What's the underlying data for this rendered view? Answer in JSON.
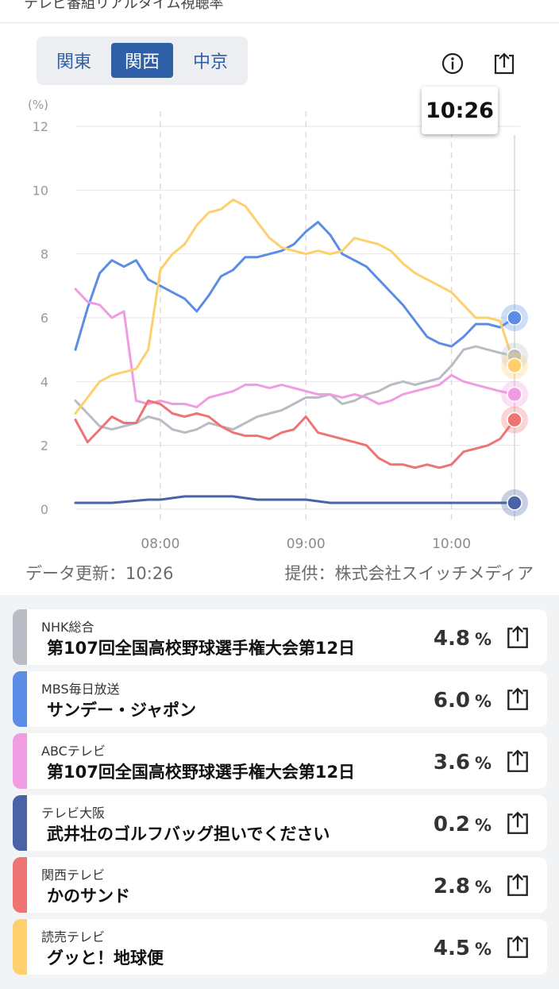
{
  "header": {
    "cut_title": "テレビ番組リアルタイム視聴率"
  },
  "regions": [
    {
      "label": "関東",
      "active": false
    },
    {
      "label": "関西",
      "active": true
    },
    {
      "label": "中京",
      "active": false
    }
  ],
  "icons": {
    "info": "info-icon",
    "share": "share-icon"
  },
  "tooltip": {
    "time": "10:26"
  },
  "chart_data": {
    "type": "line",
    "unit_label": "(%)",
    "ylim": [
      0,
      12
    ],
    "yticks": [
      "0",
      "2",
      "4",
      "6",
      "8",
      "10",
      "12"
    ],
    "xticks": [
      "08:00",
      "09:00",
      "10:00"
    ],
    "x_range": [
      "07:25",
      "10:26"
    ],
    "grid": true,
    "series": [
      {
        "name": "NHK総合",
        "color": "#b9bcc4",
        "x": [
          "07:25",
          "07:30",
          "07:35",
          "07:40",
          "07:45",
          "07:50",
          "07:55",
          "08:00",
          "08:05",
          "08:10",
          "08:15",
          "08:20",
          "08:25",
          "08:30",
          "08:35",
          "08:40",
          "08:45",
          "08:50",
          "08:55",
          "09:00",
          "09:05",
          "09:10",
          "09:15",
          "09:20",
          "09:25",
          "09:30",
          "09:35",
          "09:40",
          "09:45",
          "09:50",
          "09:55",
          "10:00",
          "10:05",
          "10:10",
          "10:15",
          "10:20",
          "10:26"
        ],
        "y": [
          3.4,
          3.0,
          2.6,
          2.5,
          2.6,
          2.7,
          2.9,
          2.8,
          2.5,
          2.4,
          2.5,
          2.7,
          2.6,
          2.5,
          2.7,
          2.9,
          3.0,
          3.1,
          3.3,
          3.5,
          3.5,
          3.6,
          3.3,
          3.4,
          3.6,
          3.7,
          3.9,
          4.0,
          3.9,
          4.0,
          4.1,
          4.5,
          5.0,
          5.1,
          5.0,
          4.9,
          4.8
        ]
      },
      {
        "name": "MBS毎日放送",
        "color": "#5b8de6",
        "x": [
          "07:25",
          "07:30",
          "07:35",
          "07:40",
          "07:45",
          "07:50",
          "07:55",
          "08:00",
          "08:05",
          "08:10",
          "08:15",
          "08:20",
          "08:25",
          "08:30",
          "08:35",
          "08:40",
          "08:45",
          "08:50",
          "08:55",
          "09:00",
          "09:05",
          "09:10",
          "09:15",
          "09:20",
          "09:25",
          "09:30",
          "09:35",
          "09:40",
          "09:45",
          "09:50",
          "09:55",
          "10:00",
          "10:05",
          "10:10",
          "10:15",
          "10:20",
          "10:26"
        ],
        "y": [
          5.0,
          6.3,
          7.4,
          7.8,
          7.6,
          7.8,
          7.2,
          7.0,
          6.8,
          6.6,
          6.2,
          6.7,
          7.3,
          7.5,
          7.9,
          7.9,
          8.0,
          8.1,
          8.3,
          8.7,
          9.0,
          8.6,
          8.0,
          7.8,
          7.6,
          7.2,
          6.8,
          6.4,
          5.9,
          5.4,
          5.2,
          5.1,
          5.4,
          5.8,
          5.8,
          5.7,
          6.0
        ]
      },
      {
        "name": "ABCテレビ",
        "color": "#f09ce3",
        "x": [
          "07:25",
          "07:30",
          "07:35",
          "07:40",
          "07:45",
          "07:50",
          "07:55",
          "08:00",
          "08:05",
          "08:10",
          "08:15",
          "08:20",
          "08:25",
          "08:30",
          "08:35",
          "08:40",
          "08:45",
          "08:50",
          "08:55",
          "09:00",
          "09:05",
          "09:10",
          "09:15",
          "09:20",
          "09:25",
          "09:30",
          "09:35",
          "09:40",
          "09:45",
          "09:50",
          "09:55",
          "10:00",
          "10:05",
          "10:10",
          "10:15",
          "10:20",
          "10:26"
        ],
        "y": [
          6.9,
          6.5,
          6.4,
          6.0,
          6.2,
          3.4,
          3.3,
          3.4,
          3.3,
          3.3,
          3.2,
          3.5,
          3.6,
          3.7,
          3.9,
          3.9,
          3.8,
          3.9,
          3.8,
          3.7,
          3.6,
          3.6,
          3.5,
          3.6,
          3.5,
          3.3,
          3.4,
          3.6,
          3.7,
          3.8,
          3.9,
          4.2,
          4.0,
          3.9,
          3.8,
          3.7,
          3.6
        ]
      },
      {
        "name": "テレビ大阪",
        "color": "#4a62a6",
        "x": [
          "07:25",
          "07:40",
          "07:55",
          "08:00",
          "08:10",
          "08:20",
          "08:30",
          "08:40",
          "08:50",
          "09:00",
          "09:10",
          "09:20",
          "09:30",
          "09:40",
          "09:50",
          "10:00",
          "10:10",
          "10:20",
          "10:26"
        ],
        "y": [
          0.2,
          0.2,
          0.3,
          0.3,
          0.4,
          0.4,
          0.4,
          0.3,
          0.3,
          0.3,
          0.2,
          0.2,
          0.2,
          0.2,
          0.2,
          0.2,
          0.2,
          0.2,
          0.2
        ]
      },
      {
        "name": "関西テレビ",
        "color": "#ee7474",
        "x": [
          "07:25",
          "07:30",
          "07:35",
          "07:40",
          "07:45",
          "07:50",
          "07:55",
          "08:00",
          "08:05",
          "08:10",
          "08:15",
          "08:20",
          "08:25",
          "08:30",
          "08:35",
          "08:40",
          "08:45",
          "08:50",
          "08:55",
          "09:00",
          "09:05",
          "09:10",
          "09:15",
          "09:20",
          "09:25",
          "09:30",
          "09:35",
          "09:40",
          "09:45",
          "09:50",
          "09:55",
          "10:00",
          "10:05",
          "10:10",
          "10:15",
          "10:20",
          "10:26"
        ],
        "y": [
          2.8,
          2.1,
          2.5,
          2.9,
          2.7,
          2.7,
          3.4,
          3.3,
          3.0,
          2.9,
          3.0,
          2.9,
          2.6,
          2.4,
          2.3,
          2.3,
          2.2,
          2.4,
          2.5,
          2.9,
          2.4,
          2.3,
          2.2,
          2.1,
          2.0,
          1.6,
          1.4,
          1.4,
          1.3,
          1.4,
          1.3,
          1.4,
          1.8,
          1.9,
          2.0,
          2.2,
          2.8
        ]
      },
      {
        "name": "読売テレビ",
        "color": "#fdd06c",
        "x": [
          "07:25",
          "07:30",
          "07:35",
          "07:40",
          "07:45",
          "07:50",
          "07:55",
          "08:00",
          "08:05",
          "08:10",
          "08:15",
          "08:20",
          "08:25",
          "08:30",
          "08:35",
          "08:40",
          "08:45",
          "08:50",
          "08:55",
          "09:00",
          "09:05",
          "09:10",
          "09:15",
          "09:20",
          "09:25",
          "09:30",
          "09:35",
          "09:40",
          "09:45",
          "09:50",
          "09:55",
          "10:00",
          "10:05",
          "10:10",
          "10:15",
          "10:20",
          "10:26"
        ],
        "y": [
          3.0,
          3.5,
          4.0,
          4.2,
          4.3,
          4.4,
          5.0,
          7.5,
          8.0,
          8.3,
          8.9,
          9.3,
          9.4,
          9.7,
          9.5,
          9.0,
          8.5,
          8.2,
          8.1,
          8.0,
          8.1,
          8.0,
          8.1,
          8.5,
          8.4,
          8.3,
          8.1,
          7.7,
          7.4,
          7.2,
          7.0,
          6.8,
          6.4,
          6.0,
          6.0,
          5.9,
          4.5
        ]
      }
    ]
  },
  "footer": {
    "updated_label": "データ更新：",
    "updated_time": "10:26",
    "provider": "提供：株式会社スイッチメディア"
  },
  "channels": [
    {
      "station": "NHK総合",
      "program": "第107回全国高校野球選手権大会第12日",
      "value": "4.8",
      "unit": "%",
      "color": "#b9bcc4"
    },
    {
      "station": "MBS毎日放送",
      "program": "サンデー・ジャポン",
      "value": "6.0",
      "unit": "%",
      "color": "#5b8de6"
    },
    {
      "station": "ABCテレビ",
      "program": "第107回全国高校野球選手権大会第12日",
      "value": "3.6",
      "unit": "%",
      "color": "#f09ce3"
    },
    {
      "station": "テレビ大阪",
      "program": "武井壮のゴルフバッグ担いでください",
      "value": "0.2",
      "unit": "%",
      "color": "#4a62a6"
    },
    {
      "station": "関西テレビ",
      "program": "かのサンド",
      "value": "2.8",
      "unit": "%",
      "color": "#ee7474"
    },
    {
      "station": "読売テレビ",
      "program": "グッと！地球便",
      "value": "4.5",
      "unit": "%",
      "color": "#fdd06c"
    }
  ]
}
